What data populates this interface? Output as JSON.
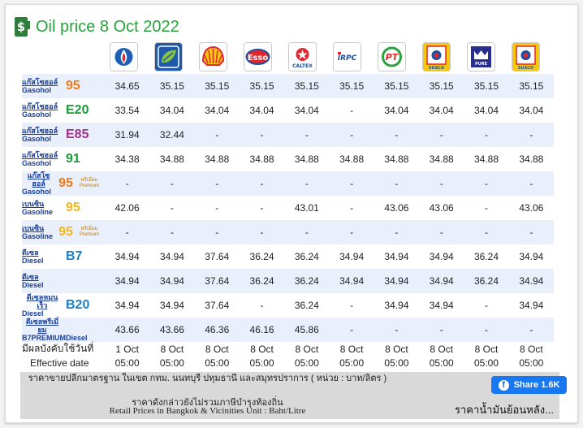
{
  "title": "Oil price 8 Oct 2022",
  "brands": [
    {
      "name": "PTT",
      "icon": "ptt-logo-icon"
    },
    {
      "name": "Bangchak",
      "icon": "bangchak-logo-icon"
    },
    {
      "name": "Shell",
      "icon": "shell-logo-icon"
    },
    {
      "name": "Esso",
      "text": "Esso",
      "icon": "esso-logo-icon"
    },
    {
      "name": "Caltex",
      "text": "CALTEX",
      "icon": "caltex-logo-icon"
    },
    {
      "name": "IRPC",
      "text": "IRPC",
      "icon": "irpc-logo-icon"
    },
    {
      "name": "PT",
      "text": "PT",
      "icon": "pt-logo-icon"
    },
    {
      "name": "Susco",
      "text": "SUSCO",
      "icon": "susco-logo-icon"
    },
    {
      "name": "Pure",
      "text": "PURE",
      "icon": "pure-logo-icon"
    },
    {
      "name": "Susco Dealers",
      "text": "SUSCO",
      "icon": "susco-dealers-logo-icon"
    }
  ],
  "rows": [
    {
      "th": "แก๊สโซฮอล์",
      "en": "Gasohol",
      "grade": "95",
      "grade_color": "#f07a1a",
      "sup": "",
      "values": [
        "34.65",
        "35.15",
        "35.15",
        "35.15",
        "35.15",
        "35.15",
        "35.15",
        "35.15",
        "35.15",
        "35.15"
      ]
    },
    {
      "th": "แก๊สโซฮอล์",
      "en": "Gasohol",
      "grade": "E20",
      "grade_color": "#1a9a3a",
      "sup": "",
      "values": [
        "33.54",
        "34.04",
        "34.04",
        "34.04",
        "34.04",
        "-",
        "34.04",
        "34.04",
        "34.04",
        "34.04"
      ]
    },
    {
      "th": "แก๊สโซฮอล์",
      "en": "Gasohol",
      "grade": "E85",
      "grade_color": "#a0308a",
      "sup": "",
      "values": [
        "31.94",
        "32.44",
        "-",
        "-",
        "-",
        "-",
        "-",
        "-",
        "-",
        "-"
      ]
    },
    {
      "th": "แก๊สโซฮอล์",
      "en": "Gasohol",
      "grade": "91",
      "grade_color": "#1a9a3a",
      "sup": "",
      "values": [
        "34.38",
        "34.88",
        "34.88",
        "34.88",
        "34.88",
        "34.88",
        "34.88",
        "34.88",
        "34.88",
        "34.88"
      ]
    },
    {
      "th": "แก๊สโซฮอล์",
      "en": "Gasohol",
      "grade": "95",
      "grade_color": "#f07a1a",
      "sup": "พรีเมี่ยม Premium",
      "values": [
        "-",
        "-",
        "-",
        "-",
        "-",
        "-",
        "-",
        "-",
        "-",
        "-"
      ]
    },
    {
      "th": "เบนซิน",
      "en": "Gasoline",
      "grade": "95",
      "grade_color": "#f2b51a",
      "sup": "",
      "values": [
        "42.06",
        "-",
        "-",
        "-",
        "43.01",
        "-",
        "43.06",
        "43.06",
        "-",
        "43.06"
      ]
    },
    {
      "th": "เบนซิน",
      "en": "Gasoline",
      "grade": "95",
      "grade_color": "#f2b51a",
      "sup": "พรีเมี่ยม Premium",
      "values": [
        "-",
        "-",
        "-",
        "-",
        "-",
        "-",
        "-",
        "-",
        "-",
        "-"
      ]
    },
    {
      "th": "ดีเซล",
      "en": "Diesel",
      "grade": "B7",
      "grade_color": "#1b7fc4",
      "sup": "",
      "values": [
        "34.94",
        "34.94",
        "37.64",
        "36.24",
        "36.24",
        "34.94",
        "34.94",
        "34.94",
        "36.24",
        "34.94"
      ]
    },
    {
      "th": "ดีเซล",
      "en": "Diesel",
      "grade": "",
      "grade_color": "#1b7fc4",
      "sup": "",
      "values": [
        "34.94",
        "34.94",
        "37.64",
        "36.24",
        "36.24",
        "34.94",
        "34.94",
        "34.94",
        "36.24",
        "34.94"
      ]
    },
    {
      "th": "ดีเซลหมุนเร็ว",
      "en": "Diesel",
      "grade": "B20",
      "grade_color": "#1b7fc4",
      "sup": "",
      "values": [
        "34.94",
        "34.94",
        "37.64",
        "-",
        "36.24",
        "-",
        "34.94",
        "34.94",
        "-",
        "34.94"
      ]
    },
    {
      "th": "ดีเซลพรีเมี่ยม",
      "en": "B7PREMIUMDiesel",
      "grade": "",
      "grade_color": "#1b7fc4",
      "sup": "",
      "values": [
        "43.66",
        "43.66",
        "46.36",
        "46.16",
        "45.86",
        "-",
        "-",
        "-",
        "-",
        "-"
      ]
    }
  ],
  "effective": {
    "label_th": "มีผลบังคับใช้วันที่",
    "label_en": "Effective date",
    "dates": [
      "1 Oct",
      "8 Oct",
      "8 Oct",
      "8 Oct",
      "8 Oct",
      "8 Oct",
      "8 Oct",
      "8 Oct",
      "8 Oct",
      "8 Oct"
    ],
    "times": [
      "05:00",
      "05:00",
      "05:00",
      "05:00",
      "05:00",
      "05:00",
      "05:00",
      "05:00",
      "05:00",
      "05:00"
    ]
  },
  "note": {
    "th1": "ราคาขายปลีกมาตรฐาน ในเขต กทม. นนทบุรี ปทุมธานี และสมุทรปราการ ( หน่วย : บาท/ลิตร )",
    "th2": "ราคาดังกล่าวยังไม่รวมภาษีบำรุงท้องถิ่น",
    "en": "Retail Prices in Bangkok & Vicinities Unit : Baht/Litre"
  },
  "share": {
    "label": "Share 1.6K",
    "icon_glyph": "f"
  },
  "history_link": "ราคาน้ำมันย้อนหลัง..."
}
